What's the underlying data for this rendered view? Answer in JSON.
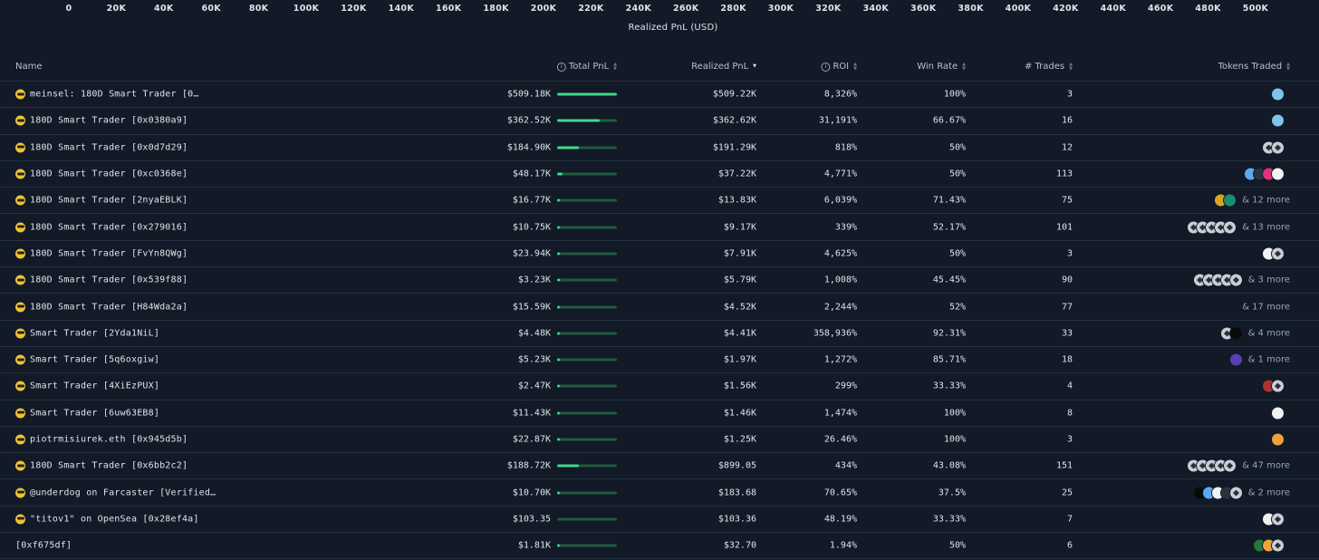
{
  "axis": {
    "ticks": [
      "0",
      "20K",
      "40K",
      "60K",
      "80K",
      "100K",
      "120K",
      "140K",
      "160K",
      "180K",
      "200K",
      "220K",
      "240K",
      "260K",
      "280K",
      "300K",
      "320K",
      "340K",
      "360K",
      "380K",
      "400K",
      "420K",
      "440K",
      "460K",
      "480K",
      "500K"
    ],
    "label": "Realized PnL (USD)"
  },
  "headers": {
    "name": "Name",
    "total_pnl": "Total PnL",
    "realized_pnl": "Realized PnL",
    "roi": "ROI",
    "win_rate": "Win Rate",
    "trades": "# Trades",
    "tokens": "Tokens Traded",
    "info_glyph": "i"
  },
  "rows": [
    {
      "name": "meinsel: 180D Smart Trader [0…",
      "total_pnl": "$509.18K",
      "bar": 1.0,
      "realized": "$509.22K",
      "roi": "8,326%",
      "win_rate": "100%",
      "trades": "3",
      "tokens": {
        "icons": [
          "smiley-token"
        ],
        "more": ""
      }
    },
    {
      "name": "180D Smart Trader [0x0380a9]",
      "total_pnl": "$362.52K",
      "bar": 0.71,
      "realized": "$362.62K",
      "roi": "31,191%",
      "win_rate": "66.67%",
      "trades": "16",
      "tokens": {
        "icons": [
          "smiley-token"
        ],
        "more": ""
      }
    },
    {
      "name": "180D Smart Trader [0x0d7d29]",
      "total_pnl": "$184.90K",
      "bar": 0.36,
      "realized": "$191.29K",
      "roi": "818%",
      "win_rate": "50%",
      "trades": "12",
      "tokens": {
        "icons": [
          "diamond",
          "diamond"
        ],
        "more": ""
      }
    },
    {
      "name": "180D Smart Trader [0xc0368e]",
      "total_pnl": "$48.17K",
      "bar": 0.09,
      "realized": "$37.22K",
      "roi": "4,771%",
      "win_rate": "50%",
      "trades": "113",
      "tokens": {
        "icons": [
          "blue",
          "dark",
          "pink",
          "white"
        ],
        "more": ""
      }
    },
    {
      "name": "180D Smart Trader [2nyaEBLK]",
      "total_pnl": "$16.77K",
      "bar": 0.03,
      "realized": "$13.83K",
      "roi": "6,039%",
      "win_rate": "71.43%",
      "trades": "75",
      "tokens": {
        "icons": [
          "gold",
          "teal"
        ],
        "more": "& 12 more"
      }
    },
    {
      "name": "180D Smart Trader [0x279016]",
      "total_pnl": "$10.75K",
      "bar": 0.02,
      "realized": "$9.17K",
      "roi": "339%",
      "win_rate": "52.17%",
      "trades": "101",
      "tokens": {
        "icons": [
          "diamond",
          "diamond",
          "diamond",
          "diamond",
          "diamond"
        ],
        "more": "& 13 more"
      }
    },
    {
      "name": "180D Smart Trader [FvYn8QWg]",
      "total_pnl": "$23.94K",
      "bar": 0.05,
      "realized": "$7.91K",
      "roi": "4,625%",
      "win_rate": "50%",
      "trades": "3",
      "tokens": {
        "icons": [
          "white",
          "diamond"
        ],
        "more": ""
      }
    },
    {
      "name": "180D Smart Trader [0x539f88]",
      "total_pnl": "$3.23K",
      "bar": 0.01,
      "realized": "$5.79K",
      "roi": "1,008%",
      "win_rate": "45.45%",
      "trades": "90",
      "tokens": {
        "icons": [
          "diamond",
          "diamond",
          "diamond",
          "diamond",
          "diamond"
        ],
        "more": "& 3 more"
      }
    },
    {
      "name": "180D Smart Trader [H84Wda2a]",
      "total_pnl": "$15.59K",
      "bar": 0.03,
      "realized": "$4.52K",
      "roi": "2,244%",
      "win_rate": "52%",
      "trades": "77",
      "tokens": {
        "icons": [],
        "more": "& 17 more"
      }
    },
    {
      "name": "Smart Trader [2Yda1NiL]",
      "total_pnl": "$4.48K",
      "bar": 0.01,
      "realized": "$4.41K",
      "roi": "358,936%",
      "win_rate": "92.31%",
      "trades": "33",
      "tokens": {
        "icons": [
          "diamond",
          "black"
        ],
        "more": "& 4 more"
      }
    },
    {
      "name": "Smart Trader [5q6oxgiw]",
      "total_pnl": "$5.23K",
      "bar": 0.01,
      "realized": "$1.97K",
      "roi": "1,272%",
      "win_rate": "85.71%",
      "trades": "18",
      "tokens": {
        "icons": [
          "purple"
        ],
        "more": "& 1 more"
      }
    },
    {
      "name": "Smart Trader [4XiEzPUX]",
      "total_pnl": "$2.47K",
      "bar": 0.005,
      "realized": "$1.56K",
      "roi": "299%",
      "win_rate": "33.33%",
      "trades": "4",
      "tokens": {
        "icons": [
          "red",
          "diamond"
        ],
        "more": ""
      }
    },
    {
      "name": "Smart Trader [6uw63EB8]",
      "total_pnl": "$11.43K",
      "bar": 0.02,
      "realized": "$1.46K",
      "roi": "1,474%",
      "win_rate": "100%",
      "trades": "8",
      "tokens": {
        "icons": [
          "white"
        ],
        "more": ""
      }
    },
    {
      "name": "piotrmisiurek.eth [0x945d5b]",
      "total_pnl": "$22.87K",
      "bar": 0.045,
      "realized": "$1.25K",
      "roi": "26.46%",
      "win_rate": "100%",
      "trades": "3",
      "tokens": {
        "icons": [
          "bitcoin"
        ],
        "more": ""
      }
    },
    {
      "name": "180D Smart Trader [0x6bb2c2]",
      "total_pnl": "$188.72K",
      "bar": 0.37,
      "realized": "$899.05",
      "roi": "434%",
      "win_rate": "43.08%",
      "trades": "151",
      "tokens": {
        "icons": [
          "diamond",
          "diamond",
          "diamond",
          "diamond",
          "diamond"
        ],
        "more": "& 47 more"
      }
    },
    {
      "name": "@underdog on Farcaster [Verified…",
      "total_pnl": "$10.70K",
      "bar": 0.02,
      "realized": "$183.68",
      "roi": "70.65%",
      "win_rate": "37.5%",
      "trades": "25",
      "tokens": {
        "icons": [
          "black",
          "blue",
          "white",
          "dark",
          "diamond"
        ],
        "more": "& 2 more"
      }
    },
    {
      "name": "\"titov1\" on OpenSea [0x28ef4a]",
      "total_pnl": "$103.35",
      "bar": 0.0,
      "realized": "$103.36",
      "roi": "48.19%",
      "win_rate": "33.33%",
      "trades": "7",
      "tokens": {
        "icons": [
          "white",
          "diamond"
        ],
        "more": ""
      }
    },
    {
      "name": "[0xf675df]",
      "total_pnl": "$1.81K",
      "bar": 0.004,
      "realized": "$32.70",
      "roi": "1.94%",
      "win_rate": "50%",
      "trades": "6",
      "tokens": {
        "icons": [
          "green",
          "bitcoin",
          "diamond"
        ],
        "more": ""
      }
    }
  ]
}
